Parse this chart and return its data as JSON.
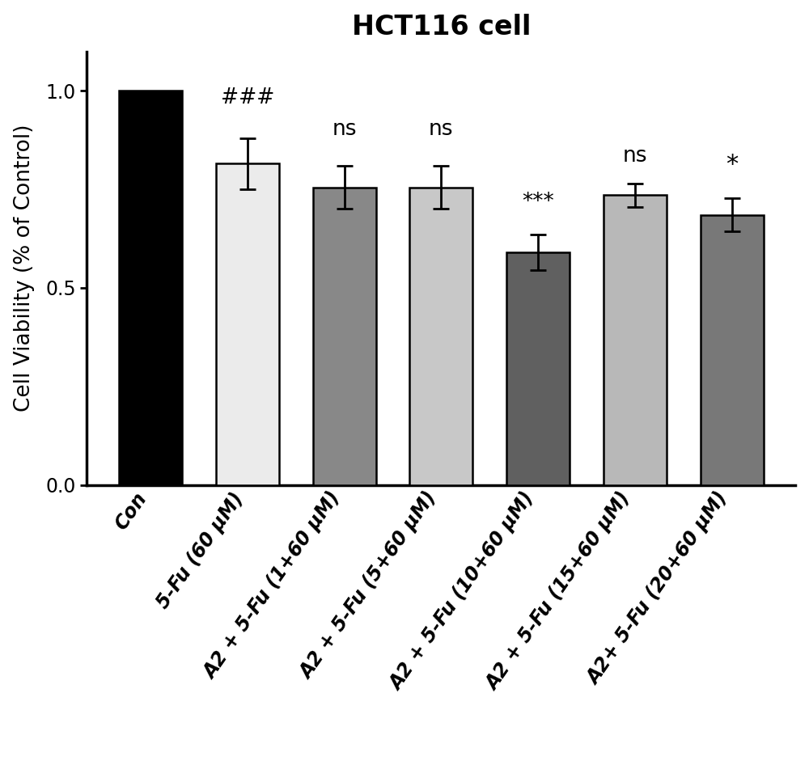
{
  "title": "HCT116 cell",
  "ylabel": "Cell Viability (% of Control)",
  "categories": [
    "Con",
    "5-Fu (60 μM)",
    "A2 + 5-Fu (1+60 μM)",
    "A2 + 5-Fu (5+60 μM)",
    "A2 + 5-Fu (10+60 μM)",
    "A2 + 5-Fu (15+60 μM)",
    "A2+ 5-Fu (20+60 μM)"
  ],
  "values": [
    1.0,
    0.815,
    0.755,
    0.755,
    0.59,
    0.735,
    0.685
  ],
  "errors": [
    0.0,
    0.065,
    0.055,
    0.055,
    0.045,
    0.03,
    0.042
  ],
  "bar_colors": [
    "#000000",
    "#ebebeb",
    "#888888",
    "#c8c8c8",
    "#606060",
    "#b8b8b8",
    "#787878"
  ],
  "bar_edgecolors": [
    "#000000",
    "#000000",
    "#000000",
    "#000000",
    "#000000",
    "#000000",
    "#000000"
  ],
  "significance": [
    "",
    "###",
    "ns",
    "ns",
    "***",
    "ns",
    "*"
  ],
  "ylim": [
    0.0,
    1.1
  ],
  "yticks": [
    0.0,
    0.5,
    1.0
  ],
  "title_fontsize": 24,
  "ylabel_fontsize": 19,
  "tick_fontsize": 17,
  "sig_fontsize": 19,
  "background_color": "#ffffff"
}
